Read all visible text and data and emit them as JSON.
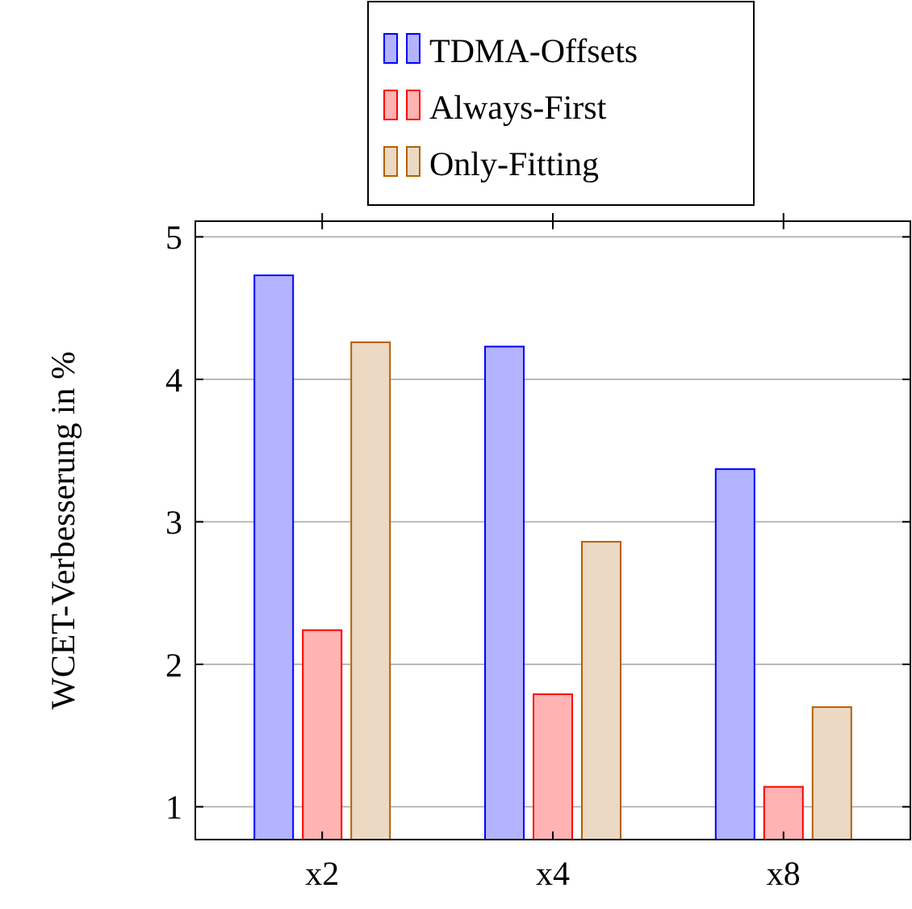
{
  "chart_data": {
    "type": "bar",
    "ylabel": "WCET-Verbesserung in %",
    "categories": [
      "x2",
      "x4",
      "x8"
    ],
    "series": [
      {
        "name": "TDMA-Offsets",
        "color": "#b3b3ff",
        "values": [
          4.73,
          4.23,
          3.37
        ]
      },
      {
        "name": "Always-First",
        "color": "#ffb3b3",
        "values": [
          2.24,
          1.79,
          1.14
        ]
      },
      {
        "name": "Only-Fitting",
        "color": "#ebd9c4",
        "values": [
          4.26,
          2.86,
          1.7
        ]
      }
    ],
    "ylim": [
      0.77,
      5.11
    ],
    "yticks": [
      1,
      2,
      3,
      4,
      5
    ],
    "grid": "y",
    "legend": "top"
  }
}
